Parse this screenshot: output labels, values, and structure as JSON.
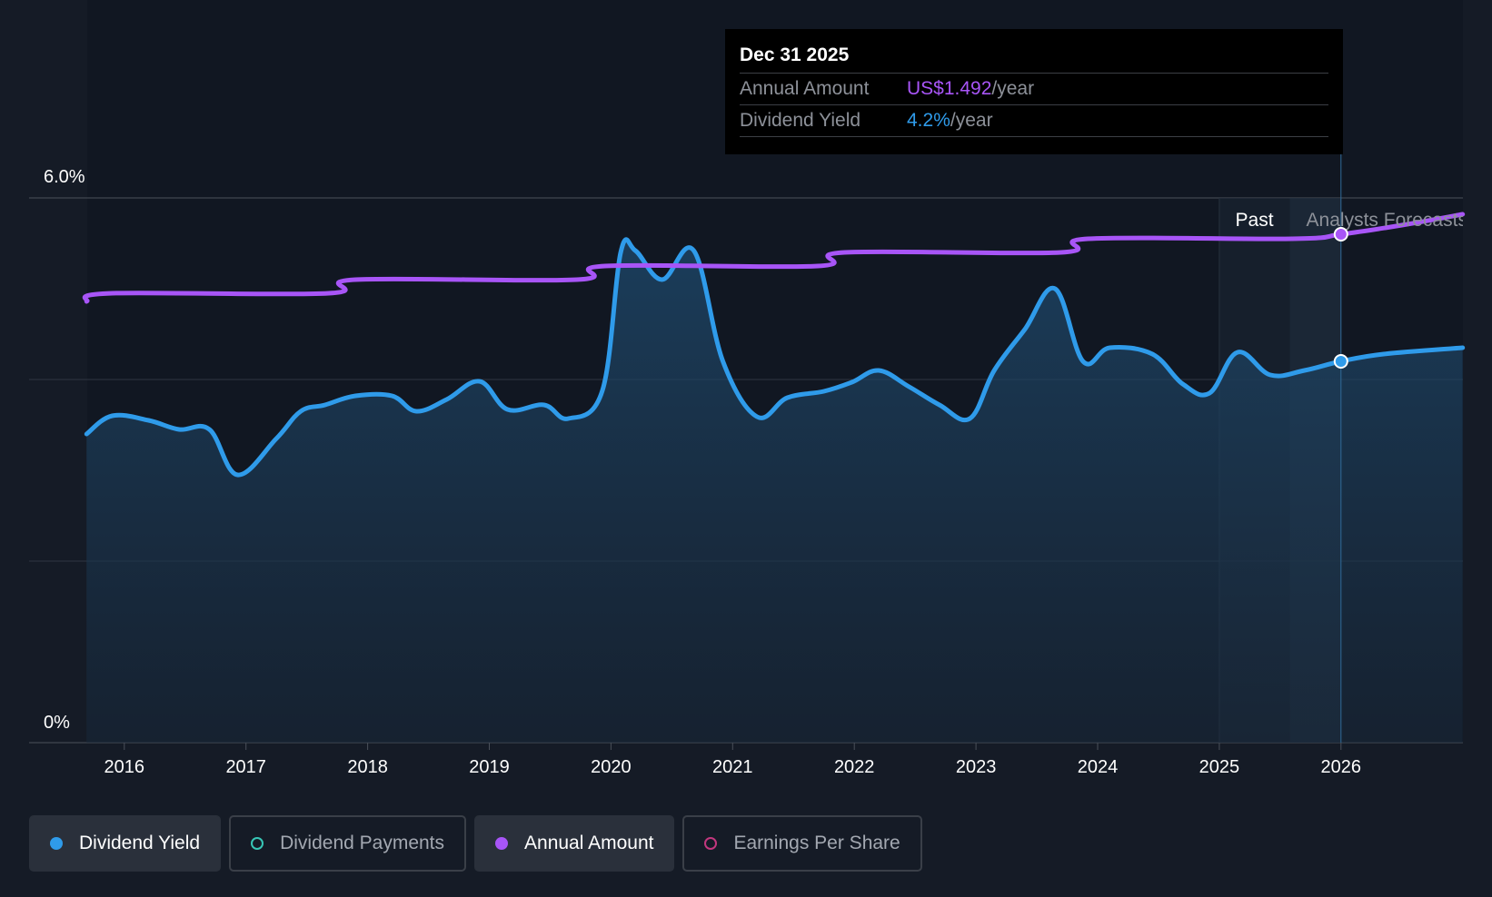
{
  "tooltip": {
    "date": "Dec 31 2025",
    "rows": [
      {
        "label": "Annual Amount",
        "value": "US$1.492",
        "unit": "/year"
      },
      {
        "label": "Dividend Yield",
        "value": "4.2%",
        "unit": "/year"
      }
    ]
  },
  "legend": {
    "items": [
      {
        "label": "Dividend Yield",
        "active": true
      },
      {
        "label": "Dividend Payments",
        "active": false
      },
      {
        "label": "Annual Amount",
        "active": true
      },
      {
        "label": "Earnings Per Share",
        "active": false
      }
    ]
  },
  "colors": {
    "background": "#151b26",
    "dividend_yield": "#2f9bea",
    "annual_amount": "#a855f7",
    "dividend_payments": "#37c6b6",
    "earnings_per_share": "#c2377e"
  },
  "chart_data": {
    "type": "line",
    "y_axis": {
      "ticks": [
        {
          "value": 6.0,
          "label": "6.0%"
        },
        {
          "value": 0,
          "label": "0%"
        }
      ],
      "ylim": [
        0,
        6.0
      ],
      "grid": true
    },
    "x_axis": {
      "xlim": [
        2015.55,
        2027.0
      ],
      "ticks": [
        2016,
        2017,
        2018,
        2019,
        2020,
        2021,
        2022,
        2023,
        2024,
        2025,
        2026
      ]
    },
    "regions": [
      {
        "label": "Past",
        "start": 2025.0,
        "end": 2025.58
      },
      {
        "label": "Analysts Forecasts",
        "start": 2025.58,
        "end": 2026.0
      }
    ],
    "highlight_x": 2026.0,
    "series": [
      {
        "name": "Dividend Yield",
        "x": [
          2015.69,
          2015.9,
          2016.2,
          2016.45,
          2016.7,
          2016.93,
          2017.25,
          2017.45,
          2017.65,
          2017.9,
          2018.2,
          2018.4,
          2018.65,
          2018.92,
          2019.15,
          2019.45,
          2019.65,
          2019.93,
          2020.08,
          2020.2,
          2020.42,
          2020.68,
          2020.92,
          2021.2,
          2021.45,
          2021.75,
          2021.98,
          2022.2,
          2022.45,
          2022.7,
          2022.95,
          2023.15,
          2023.4,
          2023.65,
          2023.88,
          2024.1,
          2024.45,
          2024.7,
          2024.92,
          2025.15,
          2025.42,
          2025.7,
          2026.0,
          2026.35,
          2027.0
        ],
        "values": [
          3.4,
          3.6,
          3.55,
          3.45,
          3.45,
          2.95,
          3.35,
          3.65,
          3.72,
          3.82,
          3.82,
          3.65,
          3.78,
          3.98,
          3.67,
          3.72,
          3.57,
          3.88,
          5.4,
          5.42,
          5.1,
          5.42,
          4.2,
          3.59,
          3.8,
          3.87,
          3.97,
          4.1,
          3.92,
          3.72,
          3.57,
          4.1,
          4.55,
          5.0,
          4.2,
          4.35,
          4.28,
          3.95,
          3.85,
          4.3,
          4.05,
          4.1,
          4.2,
          4.28,
          4.35
        ]
      },
      {
        "name": "Annual Amount",
        "x": [
          2015.69,
          2015.9,
          2017.68,
          2017.9,
          2019.72,
          2019.95,
          2021.7,
          2021.92,
          2023.7,
          2023.92,
          2025.6,
          2026.0,
          2026.5,
          2027.0
        ],
        "values": [
          4.86,
          4.95,
          4.95,
          5.1,
          5.1,
          5.25,
          5.25,
          5.4,
          5.4,
          5.55,
          5.55,
          5.6,
          5.7,
          5.82
        ]
      }
    ]
  }
}
